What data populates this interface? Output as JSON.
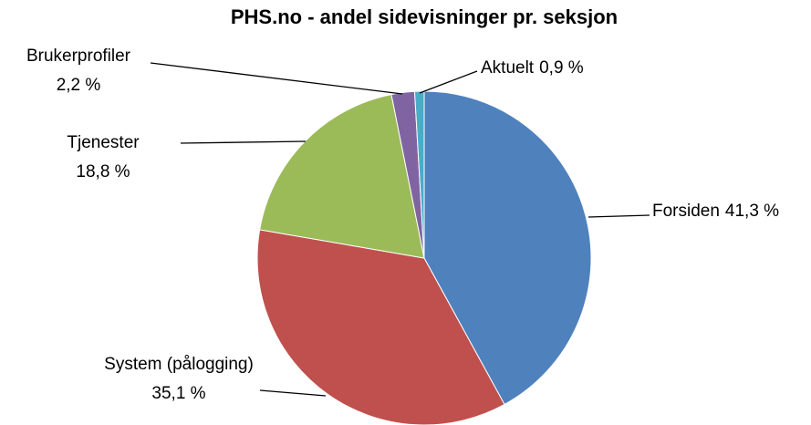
{
  "chart_data": {
    "type": "pie",
    "title": "PHS.no - andel sidevisninger pr. seksjon",
    "categories": [
      "Forsiden",
      "System (pålogging)",
      "Tjenester",
      "Brukerprofiler",
      "Aktuelt"
    ],
    "values": [
      41.3,
      35.1,
      18.8,
      2.2,
      0.9
    ],
    "value_labels": [
      "41,3 %",
      "35,1 %",
      "18,8 %",
      "2,2 %",
      "0,9 %"
    ],
    "colors": [
      "#4f81bd",
      "#c0504d",
      "#9bbb59",
      "#8064a2",
      "#4bacc6"
    ]
  }
}
